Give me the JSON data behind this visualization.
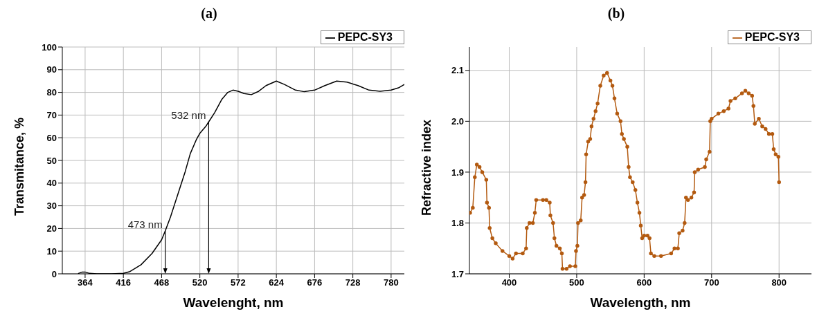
{
  "chart_data": [
    {
      "type": "line",
      "title": "(a)",
      "xlabel": "Wavelenght, nm",
      "ylabel": "Transmitance, %",
      "xlim": [
        333,
        798
      ],
      "xticks": [
        364,
        416,
        468,
        520,
        572,
        624,
        676,
        728,
        780
      ],
      "ylim": [
        0,
        100
      ],
      "yticks": [
        0,
        10,
        20,
        30,
        40,
        50,
        60,
        70,
        80,
        90,
        100
      ],
      "grid": true,
      "legend": "top right",
      "marker": "none",
      "line_style": "solid",
      "annotations": [
        {
          "text": "473 nm",
          "x": 473,
          "y": 19
        },
        {
          "text": "532 nm",
          "x": 532,
          "y": 67
        }
      ],
      "series": [
        {
          "name": "PEPC-SY3",
          "color": "#000000",
          "x": [
            355,
            360,
            364,
            370,
            380,
            400,
            416,
            425,
            440,
            455,
            468,
            473,
            480,
            490,
            500,
            507,
            515,
            520,
            528,
            532,
            540,
            550,
            558,
            565,
            572,
            580,
            590,
            600,
            610,
            624,
            635,
            650,
            662,
            676,
            690,
            706,
            720,
            735,
            750,
            765,
            780,
            790,
            798
          ],
          "values": [
            0.2,
            0.8,
            0.8,
            0.2,
            0,
            0,
            0.2,
            1,
            4,
            9,
            15,
            19,
            25,
            35,
            45,
            53,
            59,
            62,
            65,
            67,
            71,
            77,
            80,
            81,
            80.5,
            79.5,
            79,
            80.5,
            83,
            85,
            83.5,
            81,
            80.3,
            81,
            83,
            85,
            84.5,
            83,
            81,
            80.5,
            81,
            82,
            83.5
          ]
        }
      ]
    },
    {
      "type": "line",
      "title": "(b)",
      "xlabel": "Wavelength, nm",
      "ylabel": "Refractive index",
      "xlim": [
        341,
        848
      ],
      "xticks": [
        400,
        500,
        600,
        700,
        800
      ],
      "ylim": [
        1.7,
        2.146
      ],
      "yticks": [
        1.7,
        1.8,
        1.9,
        {
          "value": 2,
          "label": "2.0"
        },
        2.1
      ],
      "grid": true,
      "legend": "top right",
      "marker": "circle",
      "line_style": "solid",
      "series": [
        {
          "name": "PEPC-SY3",
          "color": "#b35a10",
          "x": [
            342,
            346,
            349,
            352,
            356,
            360,
            366,
            367,
            370,
            371,
            375,
            380,
            390,
            400,
            405,
            410,
            420,
            425,
            426,
            430,
            435,
            438,
            440,
            450,
            455,
            460,
            461,
            465,
            467,
            470,
            475,
            478,
            479,
            485,
            490,
            498,
            499,
            501,
            502,
            506,
            508,
            511,
            513,
            514,
            517,
            520,
            522,
            525,
            528,
            531,
            535,
            540,
            545,
            550,
            553,
            556,
            560,
            565,
            567,
            570,
            575,
            577,
            579,
            583,
            587,
            590,
            593,
            595,
            597,
            600,
            605,
            608,
            610,
            615,
            625,
            640,
            645,
            650,
            652,
            657,
            660,
            662,
            665,
            670,
            674,
            675,
            680,
            690,
            692,
            697,
            698,
            700,
            710,
            718,
            725,
            728,
            735,
            745,
            750,
            755,
            760,
            762,
            764,
            770,
            775,
            780,
            785,
            790,
            792,
            795,
            799,
            800
          ],
          "values": [
            1.82,
            1.83,
            1.89,
            1.915,
            1.91,
            1.9,
            1.885,
            1.84,
            1.83,
            1.79,
            1.77,
            1.76,
            1.745,
            1.735,
            1.73,
            1.74,
            1.74,
            1.75,
            1.79,
            1.8,
            1.8,
            1.82,
            1.845,
            1.845,
            1.845,
            1.84,
            1.815,
            1.8,
            1.77,
            1.755,
            1.75,
            1.74,
            1.71,
            1.71,
            1.715,
            1.715,
            1.745,
            1.755,
            1.8,
            1.805,
            1.85,
            1.855,
            1.88,
            1.935,
            1.96,
            1.965,
            1.99,
            2.005,
            2.02,
            2.035,
            2.07,
            2.09,
            2.095,
            2.08,
            2.07,
            2.045,
            2.015,
            2.0,
            1.975,
            1.965,
            1.95,
            1.91,
            1.89,
            1.88,
            1.865,
            1.84,
            1.82,
            1.795,
            1.77,
            1.775,
            1.775,
            1.77,
            1.74,
            1.735,
            1.735,
            1.74,
            1.75,
            1.75,
            1.78,
            1.785,
            1.8,
            1.85,
            1.845,
            1.85,
            1.86,
            1.9,
            1.905,
            1.91,
            1.925,
            1.94,
            2.0,
            2.005,
            2.015,
            2.02,
            2.025,
            2.04,
            2.045,
            2.055,
            2.06,
            2.055,
            2.05,
            2.03,
            1.995,
            2.005,
            1.99,
            1.985,
            1.975,
            1.975,
            1.945,
            1.935,
            1.93,
            1.88
          ]
        }
      ]
    }
  ]
}
